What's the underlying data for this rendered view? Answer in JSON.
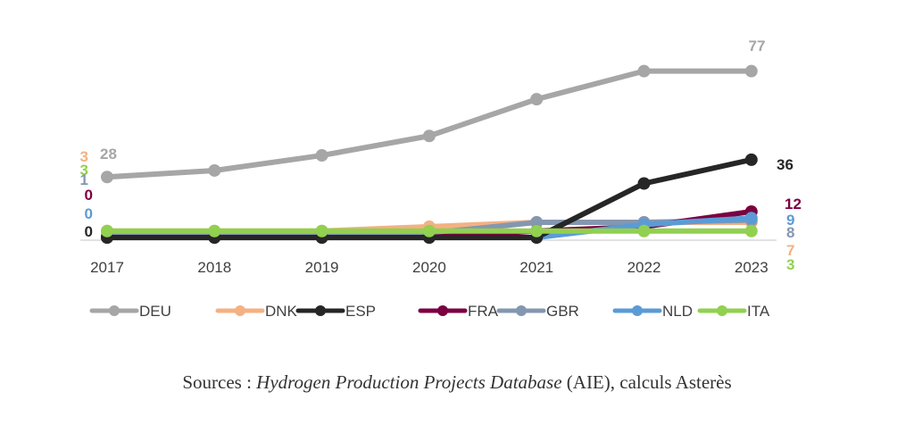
{
  "chart_data": {
    "type": "line",
    "title": "",
    "xlabel": "",
    "ylabel": "",
    "x": [
      "2017",
      "2018",
      "2019",
      "2020",
      "2021",
      "2022",
      "2023"
    ],
    "ylim": [
      0,
      80
    ],
    "grid": false,
    "legend_position": "bottom",
    "series": [
      {
        "name": "DEU",
        "color": "#a6a6a6",
        "values": [
          28,
          31,
          38,
          47,
          64,
          77,
          77
        ],
        "start_label": "28",
        "end_label": "77"
      },
      {
        "name": "DNK",
        "color": "#f4b183",
        "values": [
          3,
          3,
          3,
          5,
          7,
          7,
          7
        ],
        "start_label": "3",
        "end_label": "7"
      },
      {
        "name": "ESP",
        "color": "#262626",
        "values": [
          0,
          0,
          0,
          0,
          0,
          25,
          36
        ],
        "start_label": "0",
        "end_label": "36"
      },
      {
        "name": "FRA",
        "color": "#7b0041",
        "values": [
          0,
          0,
          0,
          0,
          3,
          5,
          12
        ],
        "start_label": "0",
        "end_label": "12"
      },
      {
        "name": "GBR",
        "color": "#8497b0",
        "values": [
          1,
          1,
          1,
          2,
          7,
          7,
          8
        ],
        "start_label": "1",
        "end_label": "8"
      },
      {
        "name": "NLD",
        "color": "#5b9bd5",
        "values": [
          0,
          0,
          0,
          0,
          0,
          6,
          9
        ],
        "start_label": "0",
        "end_label": "9"
      },
      {
        "name": "ITA",
        "color": "#92d050",
        "values": [
          3,
          3,
          3,
          3,
          3,
          3,
          3
        ],
        "start_label": "3",
        "end_label": "3"
      }
    ]
  },
  "source": {
    "prefix": "Sources : ",
    "italic": "Hydrogen Production Projects Database",
    "suffix": " (AIE), calculs Asterès"
  }
}
